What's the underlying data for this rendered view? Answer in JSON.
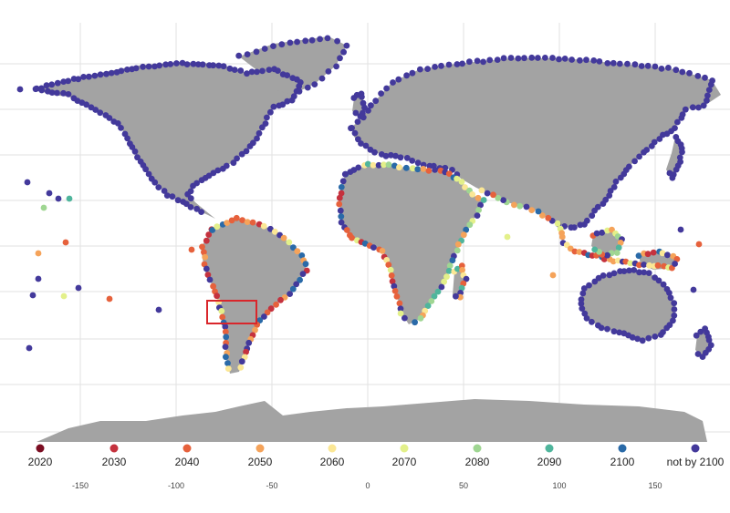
{
  "legend": [
    {
      "label": "2020",
      "color": "#7b0d22"
    },
    {
      "label": "2030",
      "color": "#c5323e"
    },
    {
      "label": "2040",
      "color": "#e6613c"
    },
    {
      "label": "2050",
      "color": "#f5a35a"
    },
    {
      "label": "2060",
      "color": "#fbe795"
    },
    {
      "label": "2070",
      "color": "#e3f08a"
    },
    {
      "label": "2080",
      "color": "#9fd692"
    },
    {
      "label": "2090",
      "color": "#4fb59c"
    },
    {
      "label": "2100",
      "color": "#2a6aa8"
    },
    {
      "label": "not by 2100",
      "color": "#43399b"
    }
  ],
  "x_ticks": [
    "-150",
    "-100",
    "-50",
    "0",
    "50",
    "100",
    "150"
  ],
  "highlight_box_color": "#d9262b",
  "land_color": "#a3a3a3",
  "grid_color": "#e2e2e2"
}
